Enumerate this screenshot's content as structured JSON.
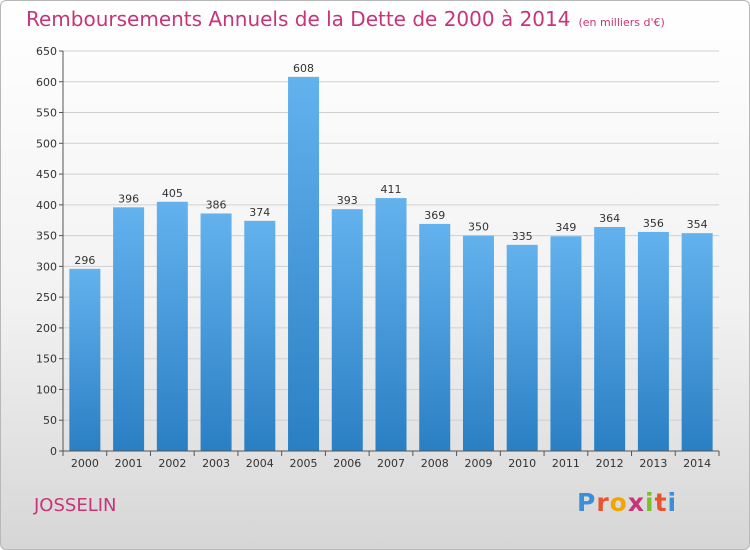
{
  "title": "Remboursements Annuels de la Dette de 2000 à 2014",
  "unit_note": "(en milliers d'€)",
  "town": "JOSSELIN",
  "logo_text": "Proxiti",
  "colors": {
    "title": "#c8347a",
    "bar_top": "#63b2ee",
    "bar_bottom": "#2a7fc3"
  },
  "chart_data": {
    "type": "bar",
    "title": "Remboursements Annuels de la Dette de 2000 à 2014",
    "categories": [
      "2000",
      "2001",
      "2002",
      "2003",
      "2004",
      "2005",
      "2006",
      "2007",
      "2008",
      "2009",
      "2010",
      "2011",
      "2012",
      "2013",
      "2014"
    ],
    "values": [
      296,
      396,
      405,
      386,
      374,
      608,
      393,
      411,
      369,
      350,
      335,
      349,
      364,
      356,
      354
    ],
    "ylim": [
      0,
      650
    ],
    "yticks": [
      0,
      50,
      100,
      150,
      200,
      250,
      300,
      350,
      400,
      450,
      500,
      550,
      600,
      650
    ],
    "grid": true,
    "legend": "none"
  }
}
